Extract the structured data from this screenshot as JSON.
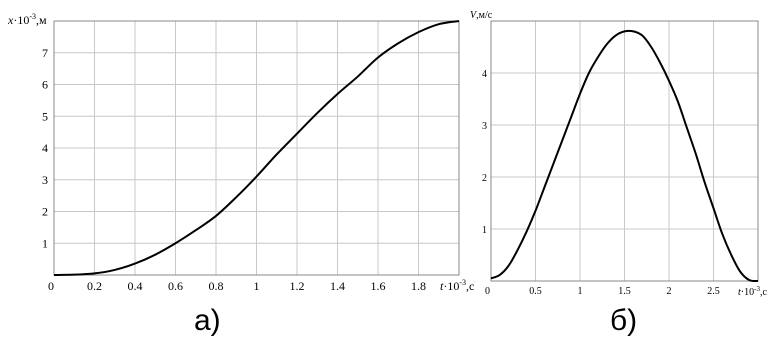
{
  "chart_data": [
    {
      "type": "line",
      "caption": "а)",
      "xlim": [
        0,
        2.0
      ],
      "ylim": [
        0,
        8
      ],
      "grid": true,
      "x_ticks": [
        "0",
        "0.2",
        "0.4",
        "0.6",
        "0.8",
        "1",
        "1.2",
        "1.4",
        "1.6",
        "1.8"
      ],
      "y_ticks": [
        "1",
        "2",
        "3",
        "4",
        "5",
        "6",
        "7"
      ],
      "xlabel_sym": "t",
      "xlabel_exp": "-3",
      "xlabel_unit": ",с",
      "ylabel_sym": "x",
      "ylabel_exp": "-3",
      "ylabel_unit": ",м",
      "axis_mult": "·10",
      "x": [
        0,
        0.1,
        0.2,
        0.3,
        0.4,
        0.5,
        0.6,
        0.7,
        0.8,
        0.9,
        1.0,
        1.1,
        1.2,
        1.3,
        1.4,
        1.5,
        1.6,
        1.7,
        1.8,
        1.9,
        2.0
      ],
      "y": [
        0,
        0.01,
        0.05,
        0.16,
        0.36,
        0.64,
        1.0,
        1.41,
        1.86,
        2.45,
        3.1,
        3.8,
        4.45,
        5.1,
        5.7,
        6.25,
        6.85,
        7.3,
        7.65,
        7.9,
        8.0
      ]
    },
    {
      "type": "line",
      "caption": "б)",
      "xlim": [
        0,
        3.0
      ],
      "ylim": [
        0,
        5
      ],
      "grid": true,
      "x_ticks": [
        "0",
        "0.5",
        "1",
        "1.5",
        "2",
        "2.5"
      ],
      "y_ticks": [
        "1",
        "2",
        "3",
        "4"
      ],
      "xlabel_sym": "t",
      "xlabel_exp": "-3",
      "xlabel_unit": ",с",
      "ylabel_sym": "V",
      "ylabel_unit": ",м/с",
      "axis_mult": "·10",
      "x": [
        0,
        0.1,
        0.2,
        0.3,
        0.4,
        0.5,
        0.6,
        0.7,
        0.8,
        0.9,
        1.0,
        1.1,
        1.2,
        1.3,
        1.4,
        1.5,
        1.6,
        1.7,
        1.8,
        1.9,
        2.0,
        2.1,
        2.2,
        2.3,
        2.4,
        2.5,
        2.6,
        2.7,
        2.8,
        2.9,
        3.0
      ],
      "y": [
        0.05,
        0.12,
        0.3,
        0.6,
        0.95,
        1.35,
        1.8,
        2.25,
        2.7,
        3.15,
        3.6,
        4.0,
        4.3,
        4.55,
        4.72,
        4.8,
        4.8,
        4.72,
        4.5,
        4.2,
        3.85,
        3.45,
        2.95,
        2.45,
        1.9,
        1.4,
        0.9,
        0.5,
        0.18,
        0.02,
        0.0
      ]
    }
  ]
}
